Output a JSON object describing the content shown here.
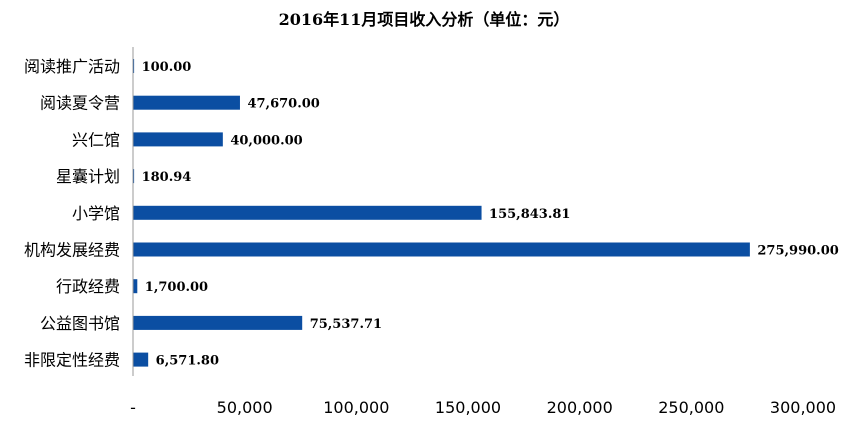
{
  "chart_data": {
    "type": "bar",
    "orientation": "horizontal",
    "title": "2016年11月项目收入分析（单位：元）",
    "categories": [
      "阅读推广活动",
      "阅读夏令营",
      "兴仁馆",
      "星囊计划",
      "小学馆",
      "机构发展经费",
      "行政经费",
      "公益图书馆",
      "非限定性经费"
    ],
    "values": [
      100.0,
      47670.0,
      40000.0,
      180.94,
      155843.81,
      275990.0,
      1700.0,
      75537.71,
      6571.8
    ],
    "value_labels": [
      "100.00",
      "47,670.00",
      "40,000.00",
      "180.94",
      "155,843.81",
      "275,990.00",
      "1,700.00",
      "75,537.71",
      "6,571.80"
    ],
    "xlim": [
      0,
      300000
    ],
    "xticks": [
      0,
      50000,
      100000,
      150000,
      200000,
      250000,
      300000
    ],
    "xtick_labels": [
      "-",
      "50,000",
      "100,000",
      "150,000",
      "200,000",
      "250,000",
      "300,000"
    ],
    "bar_color": "#0b4ea2",
    "grid": false,
    "legend": "none",
    "xlabel": "",
    "ylabel": ""
  }
}
